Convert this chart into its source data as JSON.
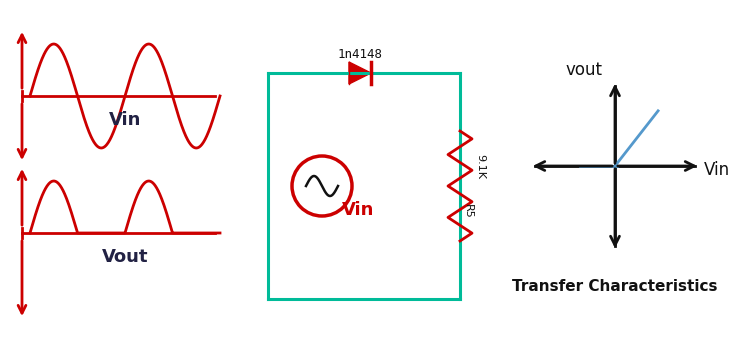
{
  "bg_color": "#ffffff",
  "red_color": "#cc0000",
  "green_color": "#00bb99",
  "blue_color": "#5599cc",
  "black_color": "#111111",
  "vin_label": "Vin",
  "vout_label": "Vout",
  "diode_label": "1n4148",
  "resistor_label": "9.1K",
  "resistor_name": "R5",
  "circuit_vin_label": "Vin",
  "transfer_vout_label": "vout",
  "transfer_vin_label": "Vin",
  "transfer_title": "Transfer Characteristics"
}
